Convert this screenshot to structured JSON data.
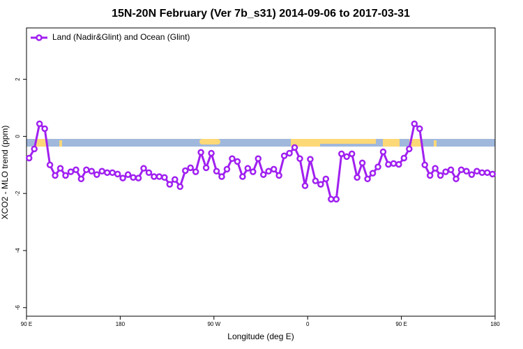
{
  "chart_data": {
    "type": "line",
    "title": "15N-20N February (Ver 7b_s31)   2014-09-06 to 2017-03-31",
    "xlabel": "Longitude (deg E)",
    "ylabel": "XCO2 - MLO trend (ppm)",
    "xlim": [
      90,
      540
    ],
    "ylim": [
      -6.3,
      3.8
    ],
    "xticks": [
      {
        "value": 90,
        "label": "90 E"
      },
      180,
      {
        "value": 270,
        "label": "90 W"
      },
      {
        "value": 360,
        "label": "0"
      },
      {
        "value": 450,
        "label": "90 E"
      },
      {
        "value": 540,
        "label": "180"
      }
    ],
    "yticks": [
      2,
      0,
      -2,
      -4,
      -6
    ],
    "legend": "upper left",
    "x": [
      92.5,
      97.5,
      102.5,
      107.5,
      112.5,
      117.5,
      122.5,
      127.5,
      132.5,
      137.5,
      142.5,
      147.5,
      152.5,
      157.5,
      162.5,
      167.5,
      172.5,
      177.5,
      182.5,
      187.5,
      192.5,
      197.5,
      202.5,
      207.5,
      212.5,
      217.5,
      222.5,
      227.5,
      232.5,
      237.5,
      242.5,
      247.5,
      252.5,
      257.5,
      262.5,
      267.5,
      272.5,
      277.5,
      282.5,
      287.5,
      292.5,
      297.5,
      302.5,
      307.5,
      312.5,
      317.5,
      322.5,
      327.5,
      332.5,
      337.5,
      342.5,
      347.5,
      352.5,
      357.5,
      362.5,
      367.5,
      372.5,
      377.5,
      382.5,
      387.5,
      392.5,
      397.5,
      402.5,
      407.5,
      412.5,
      417.5,
      422.5,
      427.5,
      432.5,
      437.5,
      442.5,
      447.5,
      452.5,
      457.5,
      462.5,
      467.5,
      472.5,
      477.5,
      482.5,
      487.5,
      492.5,
      497.5,
      502.5,
      507.5,
      512.5,
      517.5,
      522.5,
      527.5,
      532.5,
      537.5
    ],
    "series": [
      {
        "name": "Land (Nadir&Glint) and Ocean (Glint)",
        "color": "#a020f0",
        "values": [
          -0.76,
          -0.44,
          0.44,
          0.27,
          -1.0,
          -1.37,
          -1.12,
          -1.37,
          -1.24,
          -1.17,
          -1.49,
          -1.17,
          -1.22,
          -1.34,
          -1.22,
          -1.27,
          -1.27,
          -1.32,
          -1.46,
          -1.34,
          -1.44,
          -1.46,
          -1.12,
          -1.27,
          -1.41,
          -1.41,
          -1.44,
          -1.68,
          -1.51,
          -1.76,
          -1.2,
          -1.1,
          -1.24,
          -0.56,
          -1.1,
          -0.59,
          -1.22,
          -1.41,
          -1.15,
          -0.78,
          -0.88,
          -1.41,
          -1.12,
          -1.24,
          -0.78,
          -1.34,
          -1.22,
          -1.15,
          -1.37,
          -0.68,
          -0.59,
          -0.39,
          -0.78,
          -1.73,
          -0.8,
          -1.56,
          -1.68,
          -1.49,
          -2.2,
          -2.2,
          -0.61,
          -0.71,
          -0.61,
          -1.44,
          -0.93,
          -1.49,
          -1.29,
          -1.07,
          -0.54,
          -0.98,
          -0.95,
          -0.98,
          -0.76,
          -0.44,
          0.44,
          0.27,
          -1.0,
          -1.37,
          -1.12,
          -1.37,
          -1.24,
          -1.17,
          -1.49,
          -1.17,
          -1.22,
          -1.34,
          -1.22,
          -1.27,
          -1.27,
          -1.32
        ]
      }
    ]
  }
}
